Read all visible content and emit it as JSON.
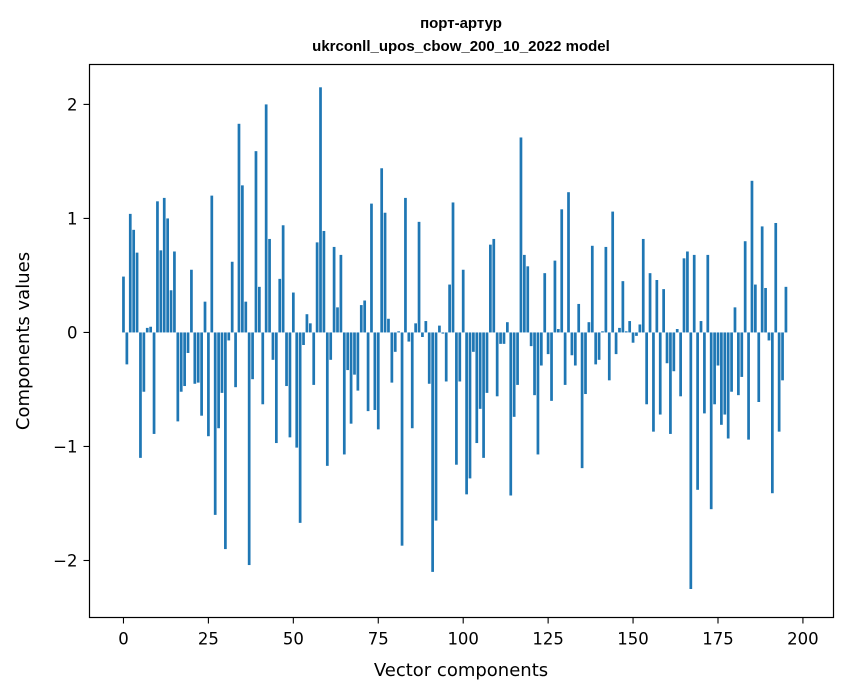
{
  "chart_data": {
    "type": "bar",
    "title_line1": "порт-артур",
    "title_line2": "ukrconll_upos_cbow_200_10_2022 model",
    "xlabel": "Vector components",
    "ylabel": "Components values",
    "xlim": [
      -10,
      209
    ],
    "ylim": [
      -2.5,
      2.35
    ],
    "xticks": [
      0,
      25,
      50,
      75,
      100,
      125,
      150,
      175,
      200
    ],
    "xtick_labels": [
      "0",
      "25",
      "50",
      "75",
      "100",
      "125",
      "150",
      "175",
      "200"
    ],
    "yticks": [
      -2,
      -1,
      0,
      1,
      2
    ],
    "ytick_labels": [
      "−2",
      "−1",
      "0",
      "1",
      "2"
    ],
    "bar_color": "#1f77b4",
    "values": [
      0.49,
      -0.28,
      1.04,
      0.9,
      0.7,
      -1.1,
      -0.52,
      0.04,
      0.05,
      -0.89,
      1.15,
      0.72,
      1.18,
      1.0,
      0.37,
      0.71,
      -0.78,
      -0.52,
      -0.47,
      -0.18,
      0.55,
      -0.45,
      -0.44,
      -0.73,
      0.27,
      -0.91,
      1.2,
      -1.6,
      -0.84,
      -0.53,
      -1.9,
      -0.07,
      0.62,
      -0.48,
      1.83,
      1.29,
      0.27,
      -2.04,
      -0.41,
      1.59,
      0.4,
      -0.63,
      2.0,
      0.82,
      -0.24,
      -0.97,
      0.47,
      0.94,
      -0.47,
      -0.92,
      0.35,
      -1.01,
      -1.67,
      -0.11,
      0.16,
      0.08,
      -0.46,
      0.79,
      2.15,
      0.89,
      -1.17,
      -0.24,
      0.75,
      0.22,
      0.68,
      -1.07,
      -0.33,
      -0.8,
      -0.37,
      -0.51,
      0.24,
      0.28,
      -0.69,
      1.13,
      -0.68,
      -0.85,
      1.44,
      1.05,
      0.12,
      -0.44,
      -0.17,
      0.01,
      -1.87,
      1.18,
      -0.08,
      -0.84,
      0.08,
      0.97,
      -0.04,
      0.1,
      -0.45,
      -2.1,
      -1.65,
      0.06,
      -0.01,
      -0.43,
      0.42,
      1.14,
      -1.16,
      -0.43,
      0.55,
      -1.42,
      -1.28,
      -0.17,
      -0.97,
      -0.67,
      -1.1,
      -0.53,
      0.77,
      0.82,
      -0.56,
      -0.1,
      -0.1,
      0.09,
      -1.43,
      -0.74,
      -0.46,
      1.71,
      0.68,
      0.58,
      -0.12,
      -0.55,
      -1.07,
      -0.29,
      0.52,
      -0.19,
      -0.6,
      0.63,
      0.03,
      1.08,
      -0.46,
      1.23,
      -0.2,
      -0.29,
      0.25,
      -1.19,
      -0.54,
      0.09,
      0.76,
      -0.28,
      -0.24,
      0.01,
      0.75,
      -0.42,
      1.06,
      -0.19,
      0.04,
      0.45,
      0.01,
      0.1,
      -0.09,
      -0.03,
      0.07,
      0.82,
      -0.63,
      0.52,
      -0.87,
      0.46,
      -0.72,
      0.38,
      -0.27,
      -0.89,
      -0.34,
      0.03,
      -0.56,
      0.65,
      0.71,
      -2.25,
      0.68,
      -1.38,
      0.1,
      -0.71,
      0.68,
      -1.55,
      -0.63,
      -0.29,
      -0.81,
      -0.72,
      -0.93,
      -0.52,
      0.22,
      -0.55,
      -0.39,
      0.8,
      -0.94,
      1.33,
      0.42,
      -0.61,
      0.93,
      0.39,
      -0.07,
      -1.41,
      0.96,
      -0.87,
      -0.42,
      0.4
    ]
  }
}
